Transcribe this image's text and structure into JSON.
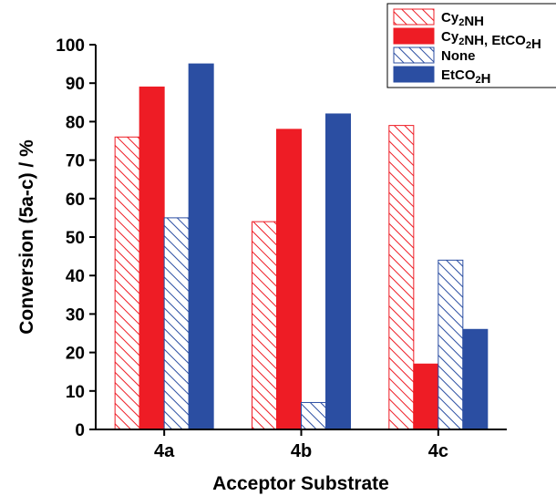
{
  "chart_data": {
    "type": "bar",
    "title": "",
    "xlabel": "Acceptor Substrate",
    "ylabel": "Conversion (5a-c) / %",
    "categories": [
      "4a",
      "4b",
      "4c"
    ],
    "ylim": [
      0,
      100
    ],
    "yticks": [
      0,
      10,
      20,
      30,
      40,
      50,
      60,
      70,
      80,
      90,
      100
    ],
    "grid": false,
    "legend_position": "top-right",
    "series": [
      {
        "name": "Cy2NH",
        "name_main": "Cy",
        "name_sub": "2",
        "name_tail": "NH",
        "color": "#ee1c25",
        "pattern": "hatched",
        "values": [
          76,
          54,
          79
        ]
      },
      {
        "name": "Cy2NH, EtCO2H",
        "name_main": "Cy",
        "name_sub": "2",
        "name_tail": "NH, EtCO",
        "name_sub2": "2",
        "name_tail2": "H",
        "color": "#ee1c25",
        "pattern": "solid",
        "values": [
          89,
          78,
          17
        ]
      },
      {
        "name": "None",
        "name_main": "None",
        "color": "#2b4ea2",
        "pattern": "hatched",
        "values": [
          55,
          7,
          44
        ]
      },
      {
        "name": "EtCO2H",
        "name_main": "EtCO",
        "name_sub": "2",
        "name_tail": "H",
        "color": "#2b4ea2",
        "pattern": "solid",
        "values": [
          95,
          82,
          26
        ]
      }
    ]
  }
}
